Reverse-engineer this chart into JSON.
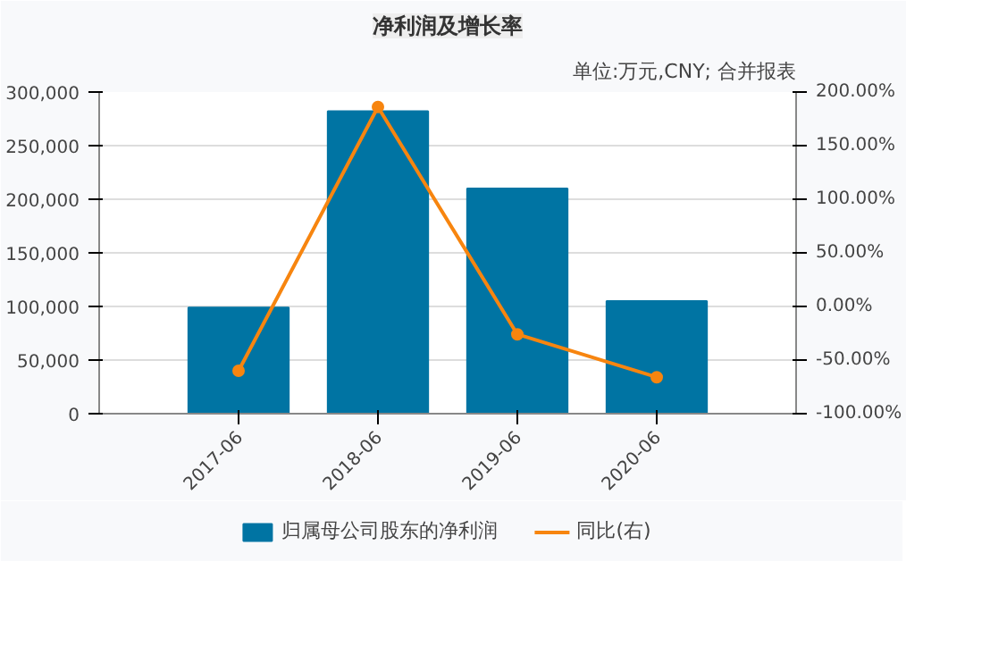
{
  "chart_data": {
    "type": "bar",
    "title": "净利润及增长率",
    "annotations": [
      "单位:万元,CNY; 合并报表"
    ],
    "categories": [
      "2017-06",
      "2018-06",
      "2019-06",
      "2020-06"
    ],
    "series": [
      {
        "name": "归属母公司股东的净利润",
        "color": "#0074a3",
        "values": [
          99000,
          282000,
          210000,
          105000
        ]
      },
      {
        "name": "同比(右)",
        "type": "line",
        "axis": "y2",
        "color": "#f7850f",
        "marker": "circle",
        "values": [
          -60,
          186,
          -26,
          -66
        ]
      }
    ],
    "ylim": [
      0,
      300000
    ],
    "yticks": [
      {
        "value": 0,
        "label": "0"
      },
      {
        "value": 50000,
        "label": "50,000"
      },
      {
        "value": 100000,
        "label": "100,000"
      },
      {
        "value": 150000,
        "label": "150,000"
      },
      {
        "value": 200000,
        "label": "200,000"
      },
      {
        "value": 250000,
        "label": "250,000"
      },
      {
        "value": 300000,
        "label": "300,000"
      }
    ],
    "y2lim": [
      -100,
      200
    ],
    "y2ticks": [
      {
        "value": -100,
        "label": "-100.00%"
      },
      {
        "value": -50,
        "label": "-50.00%"
      },
      {
        "value": 0,
        "label": "0.00%"
      },
      {
        "value": 50,
        "label": "50.00%"
      },
      {
        "value": 100,
        "label": "100.00%"
      },
      {
        "value": 150,
        "label": "150.00%"
      },
      {
        "value": 200,
        "label": "200.00%"
      }
    ],
    "grid": "y",
    "legend": "bottom"
  }
}
